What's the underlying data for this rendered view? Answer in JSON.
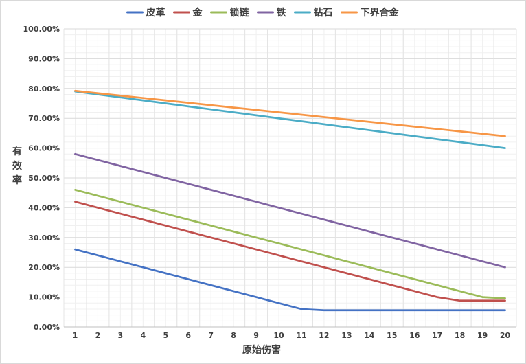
{
  "chart_data": {
    "type": "line",
    "title": "",
    "xlabel": "原始伤害",
    "ylabel": "有效率",
    "ylim": [
      0,
      1
    ],
    "y_ticks": [
      "0.00%",
      "10.00%",
      "20.00%",
      "30.00%",
      "40.00%",
      "50.00%",
      "60.00%",
      "70.00%",
      "80.00%",
      "90.00%",
      "100.00%"
    ],
    "y_tick_values": [
      0,
      0.1,
      0.2,
      0.3,
      0.4,
      0.5,
      0.6,
      0.7,
      0.8,
      0.9,
      1.0
    ],
    "x": [
      1,
      2,
      3,
      4,
      5,
      6,
      7,
      8,
      9,
      10,
      11,
      12,
      13,
      14,
      15,
      16,
      17,
      18,
      19,
      20
    ],
    "x_tick_labels": [
      "1",
      "2",
      "3",
      "4",
      "5",
      "6",
      "7",
      "8",
      "9",
      "10",
      "11",
      "12",
      "13",
      "14",
      "15",
      "16",
      "17",
      "18",
      "19",
      "20"
    ],
    "grid": true,
    "legend_position": "top",
    "series": [
      {
        "name": "皮革",
        "color": "#4472C4",
        "values": [
          0.26,
          0.24,
          0.22,
          0.2,
          0.18,
          0.16,
          0.14,
          0.12,
          0.1,
          0.08,
          0.06,
          0.056,
          0.056,
          0.056,
          0.056,
          0.056,
          0.056,
          0.056,
          0.056,
          0.056
        ]
      },
      {
        "name": "金",
        "color": "#C0504D",
        "values": [
          0.42,
          0.4,
          0.38,
          0.36,
          0.34,
          0.32,
          0.3,
          0.28,
          0.26,
          0.24,
          0.22,
          0.2,
          0.18,
          0.16,
          0.14,
          0.12,
          0.1,
          0.088,
          0.088,
          0.088
        ]
      },
      {
        "name": "锁链",
        "color": "#9BBB59",
        "values": [
          0.46,
          0.44,
          0.42,
          0.4,
          0.38,
          0.36,
          0.34,
          0.32,
          0.3,
          0.28,
          0.26,
          0.24,
          0.22,
          0.2,
          0.18,
          0.16,
          0.14,
          0.12,
          0.1,
          0.096
        ]
      },
      {
        "name": "铁",
        "color": "#8064A2",
        "values": [
          0.58,
          0.56,
          0.54,
          0.52,
          0.5,
          0.48,
          0.46,
          0.44,
          0.42,
          0.4,
          0.38,
          0.36,
          0.34,
          0.32,
          0.3,
          0.28,
          0.26,
          0.24,
          0.22,
          0.2
        ]
      },
      {
        "name": "钻石",
        "color": "#4BACC6",
        "values": [
          0.79,
          0.78,
          0.77,
          0.76,
          0.75,
          0.74,
          0.73,
          0.72,
          0.71,
          0.7,
          0.69,
          0.68,
          0.67,
          0.66,
          0.65,
          0.64,
          0.63,
          0.62,
          0.61,
          0.6
        ]
      },
      {
        "name": "下界合金",
        "color": "#F79646",
        "values": [
          0.792,
          0.784,
          0.776,
          0.768,
          0.76,
          0.752,
          0.744,
          0.736,
          0.728,
          0.72,
          0.712,
          0.704,
          0.696,
          0.688,
          0.68,
          0.672,
          0.664,
          0.656,
          0.648,
          0.64
        ]
      }
    ]
  }
}
